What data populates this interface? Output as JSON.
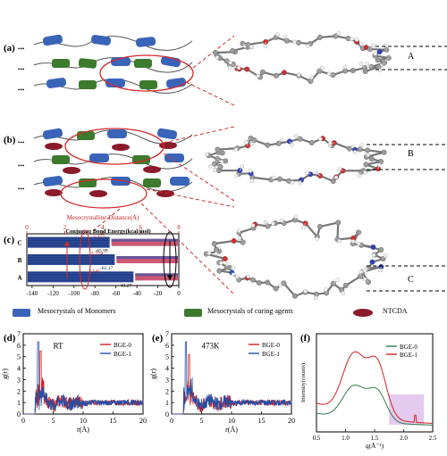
{
  "panels": {
    "a": "(a)",
    "b": "(b)",
    "c": "(c)",
    "d": "(d)",
    "e": "(e)",
    "f": "(f)"
  },
  "ellipsis": "•••",
  "distance_labels": {
    "A": "A",
    "B": "B",
    "C": "C"
  },
  "legend": {
    "monomers": "Mesocrystals of Monomers",
    "curing": "Mesocrystals of curing agents",
    "ntcda": "NTCDA"
  },
  "colors": {
    "monomer_blue": "#3a64b8",
    "curing_green": "#3c7a2e",
    "ntcda_red": "#8b1a2a",
    "ellipse_red": "#d42a2a",
    "bge0_red": "#d42020",
    "bge1_blue": "#1f4fa8",
    "bge1_green": "#2e7d4a"
  },
  "chart_data": [
    {
      "panel": "c",
      "type": "bar",
      "top_axis": {
        "label": "Mesocrystalline Distance(Å)",
        "ticks": [
          "0",
          "2",
          "4",
          "6",
          "8"
        ],
        "range": [
          0,
          8
        ]
      },
      "bottom_axis": {
        "label": "Conjugate Bond Energy(kcal/mol)",
        "ticks": [
          "-140",
          "-120",
          "-100",
          "-80",
          "-60",
          "-40",
          "-20",
          "0"
        ],
        "range": [
          -145,
          0
        ]
      },
      "categories": [
        "C",
        "B",
        "A"
      ],
      "energy": [
        "-65.99",
        "-61.17",
        "-43.27"
      ],
      "distance": [
        "3.375",
        "3.274",
        "3.141"
      ]
    },
    {
      "panel": "d",
      "type": "line",
      "title": "RT",
      "xlabel": "r(Å)",
      "ylabel": "g(r)",
      "xticks": [
        "0",
        "5",
        "10",
        "15",
        "20"
      ],
      "yticks": [
        "0",
        "1",
        "2",
        "3",
        "4",
        "5",
        "6",
        "7"
      ],
      "xlim": [
        0,
        20
      ],
      "ylim": [
        0,
        7
      ],
      "series": [
        {
          "name": "BGE-0",
          "peak_x": 2.9,
          "peak_y": 5.5
        },
        {
          "name": "BGE-1",
          "peak_x": 2.5,
          "peak_y": 6.3
        }
      ]
    },
    {
      "panel": "e",
      "type": "line",
      "title": "473K",
      "xlabel": "r(Å)",
      "ylabel": "g(r)",
      "xticks": [
        "0",
        "5",
        "10",
        "15",
        "20"
      ],
      "yticks": [
        "0",
        "1",
        "2",
        "3",
        "4",
        "5",
        "6",
        "7"
      ],
      "xlim": [
        0,
        20
      ],
      "ylim": [
        0,
        7
      ],
      "series": [
        {
          "name": "BGE-0",
          "peak_x": 2.9,
          "peak_y": 5.2
        },
        {
          "name": "BGE-1",
          "peak_x": 2.4,
          "peak_y": 6.3
        }
      ]
    },
    {
      "panel": "f",
      "type": "line",
      "xlabel": "q(Å⁻¹)",
      "ylabel": "Intensity(counts)",
      "xticks": [
        "0.5",
        "1.0",
        "1.5",
        "2.0",
        "2.5"
      ],
      "xlim": [
        0.5,
        2.5
      ],
      "series": [
        {
          "name": "BGE-0",
          "peaks_q": [
            1.15,
            1.55
          ]
        },
        {
          "name": "BGE-1",
          "peaks_q": [
            1.15,
            1.55
          ]
        }
      ]
    }
  ]
}
